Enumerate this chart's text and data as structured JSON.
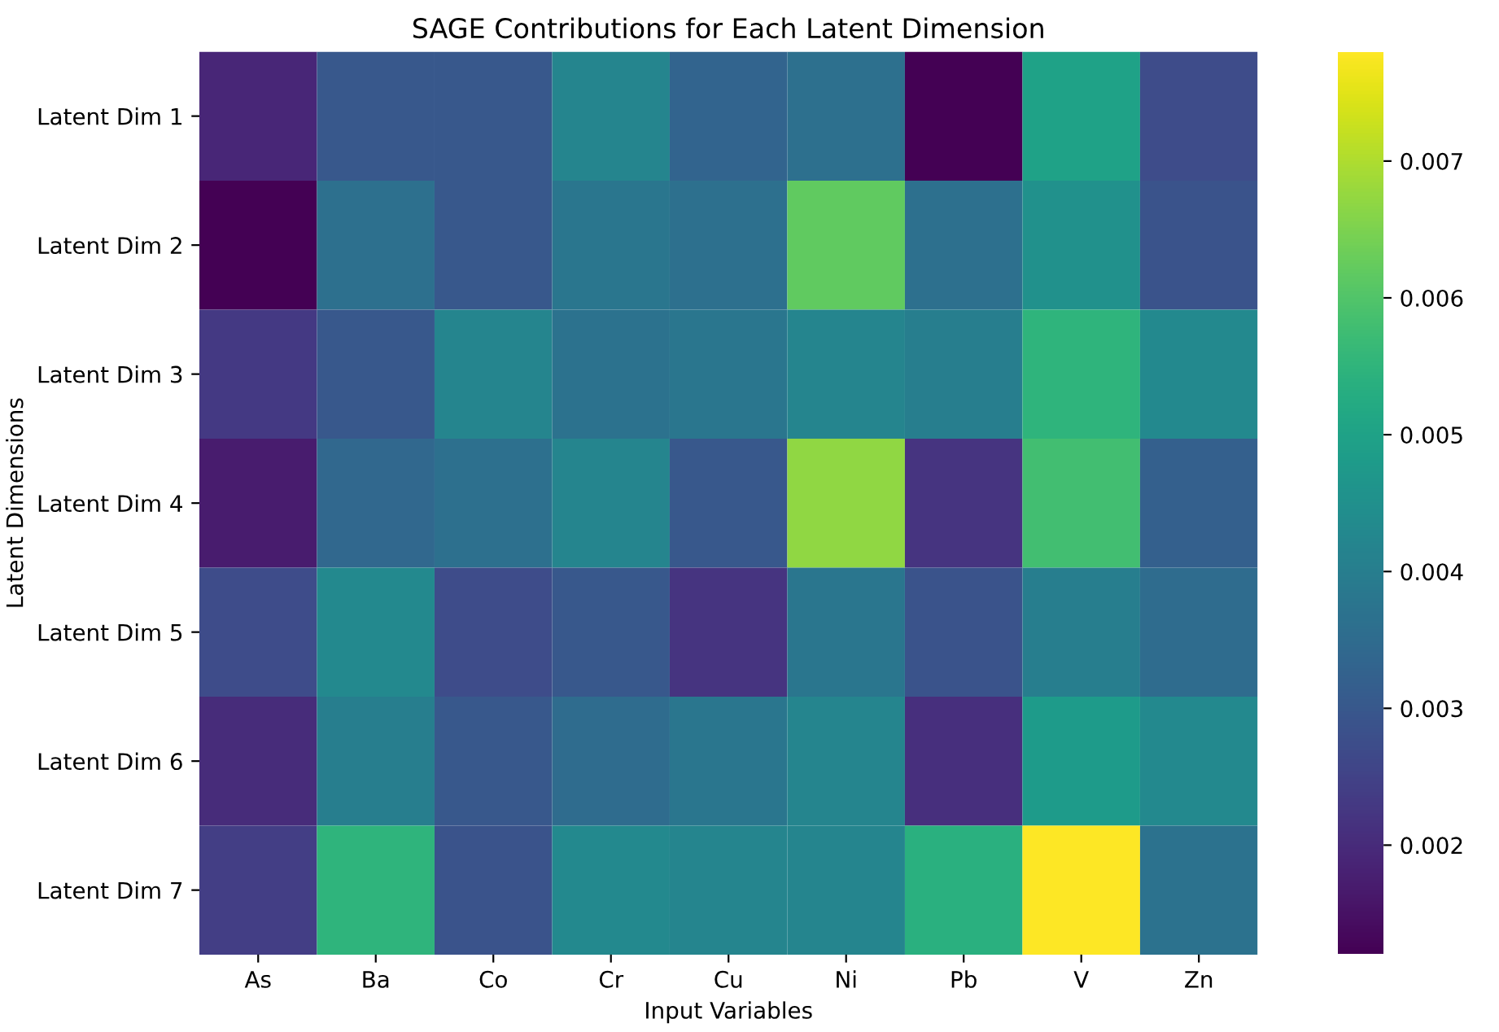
{
  "chart_data": {
    "type": "heatmap",
    "title": "SAGE Contributions for Each Latent Dimension",
    "xlabel": "Input Variables",
    "ylabel": "Latent Dimensions",
    "categories": [
      "As",
      "Ba",
      "Co",
      "Cr",
      "Cu",
      "Ni",
      "Pb",
      "V",
      "Zn"
    ],
    "y_categories": [
      "Latent Dim 1",
      "Latent Dim 2",
      "Latent Dim 3",
      "Latent Dim 4",
      "Latent Dim 5",
      "Latent Dim 6",
      "Latent Dim 7"
    ],
    "cells": [
      [
        0.0019,
        0.003,
        0.003,
        0.0042,
        0.0033,
        0.0036,
        0.0012,
        0.005,
        0.0027
      ],
      [
        0.0012,
        0.0036,
        0.003,
        0.0038,
        0.0036,
        0.0062,
        0.0036,
        0.0045,
        0.0029
      ],
      [
        0.0023,
        0.003,
        0.0042,
        0.0037,
        0.0038,
        0.0042,
        0.004,
        0.0055,
        0.0043
      ],
      [
        0.0017,
        0.0034,
        0.0036,
        0.0042,
        0.003,
        0.0067,
        0.0022,
        0.0058,
        0.0032
      ],
      [
        0.0027,
        0.0043,
        0.0027,
        0.003,
        0.0022,
        0.0038,
        0.0029,
        0.004,
        0.0035
      ],
      [
        0.002,
        0.004,
        0.003,
        0.0035,
        0.0038,
        0.0042,
        0.0021,
        0.0048,
        0.0043
      ],
      [
        0.0024,
        0.0055,
        0.0029,
        0.0043,
        0.0042,
        0.0042,
        0.0054,
        0.0078,
        0.0037
      ]
    ],
    "clim": [
      0.0012,
      0.0078
    ],
    "cticks": [
      {
        "value": 0.002,
        "label": "0.002"
      },
      {
        "value": 0.003,
        "label": "0.003"
      },
      {
        "value": 0.004,
        "label": "0.004"
      },
      {
        "value": 0.005,
        "label": "0.005"
      },
      {
        "value": 0.006,
        "label": "0.006"
      },
      {
        "value": 0.007,
        "label": "0.007"
      }
    ]
  }
}
